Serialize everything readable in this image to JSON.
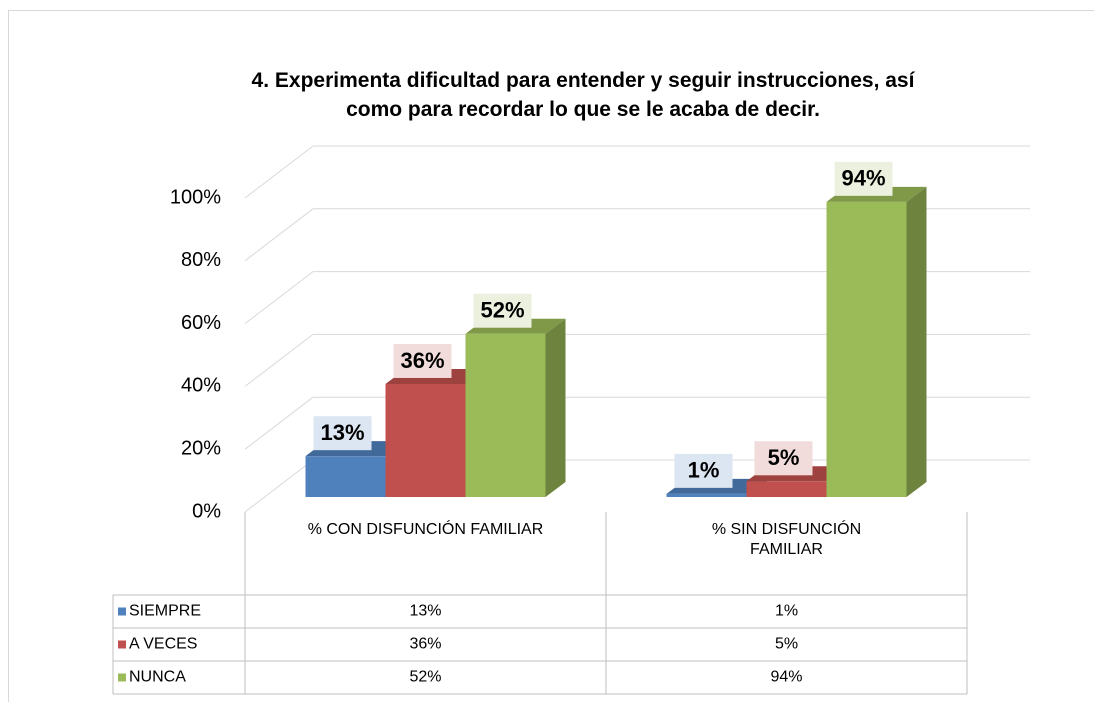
{
  "chart_data": {
    "type": "bar3d",
    "title": "4. Experimenta dificultad para entender y seguir instrucciones, así como para recordar lo que se le acaba de decir.",
    "categories": [
      "% CON DISFUNCIÓN FAMILIAR",
      "% SIN DISFUNCIÓN FAMILIAR"
    ],
    "series": [
      {
        "name": "SIEMPRE",
        "color": "#4f81bd",
        "values": [
          13,
          1
        ],
        "value_labels": [
          "13%",
          "1%"
        ]
      },
      {
        "name": "A VECES",
        "color": "#c0504d",
        "values": [
          36,
          5
        ],
        "value_labels": [
          "36%",
          "5%"
        ]
      },
      {
        "name": "NUNCA",
        "color": "#9bbb59",
        "values": [
          52,
          94
        ],
        "value_labels": [
          "52%",
          "94%"
        ]
      }
    ],
    "ylim": [
      0,
      100
    ],
    "yticks": [
      {
        "value": 0,
        "label": "0%"
      },
      {
        "value": 20,
        "label": "20%"
      },
      {
        "value": 40,
        "label": "40%"
      },
      {
        "value": 60,
        "label": "60%"
      },
      {
        "value": 80,
        "label": "80%"
      },
      {
        "value": 100,
        "label": "100%"
      }
    ],
    "grid": true,
    "data_table": true
  }
}
